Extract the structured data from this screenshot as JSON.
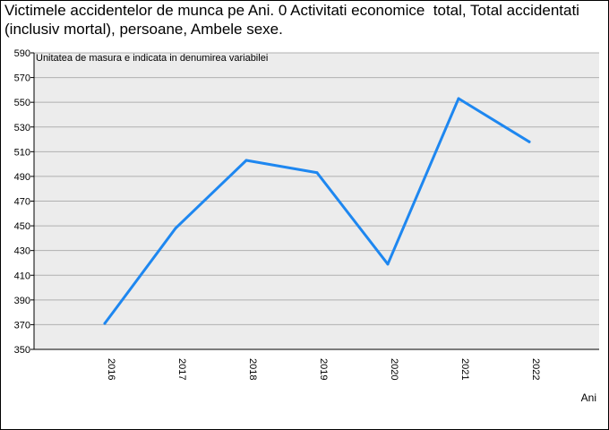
{
  "chart_data": {
    "type": "line",
    "title": "Victimele accidentelor de munca pe Ani. 0 Activitati economice  total, Total accidentati (inclusiv mortal), persoane, Ambele sexe.",
    "note": "Unitatea de masura e indicata in denumirea variabilei",
    "xlabel": "Ani",
    "ylabel": "",
    "categories": [
      "2016",
      "2017",
      "2018",
      "2019",
      "2020",
      "2021",
      "2022"
    ],
    "series": [
      {
        "values": [
          371,
          448,
          503,
          493,
          419,
          553,
          518
        ]
      }
    ],
    "ylim": [
      350,
      590
    ],
    "yticks": [
      350,
      370,
      390,
      410,
      430,
      450,
      470,
      490,
      510,
      530,
      550,
      570,
      590
    ],
    "grid": true,
    "colors": {
      "line": "#1e87f0",
      "plot_background": "#ececec",
      "grid": "#b0b0b0"
    }
  }
}
